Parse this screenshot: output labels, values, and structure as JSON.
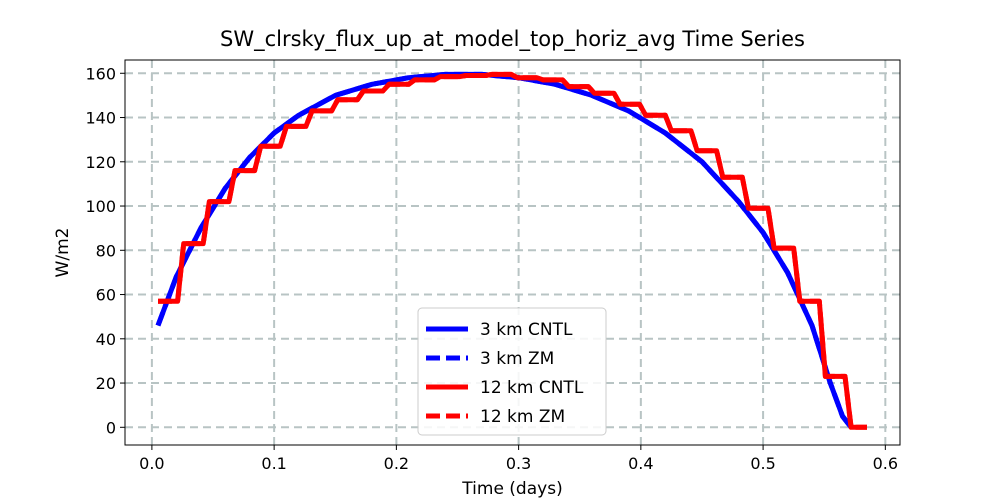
{
  "chart_data": {
    "type": "line",
    "title": "SW_clrsky_flux_up_at_model_top_horiz_avg Time Series",
    "xlabel": "Time (days)",
    "ylabel": "W/m2",
    "xlim": [
      -0.022,
      0.612
    ],
    "ylim": [
      -8,
      166
    ],
    "xticks": [
      0.0,
      0.1,
      0.2,
      0.3,
      0.4,
      0.5,
      0.6
    ],
    "xtick_labels": [
      "0.0",
      "0.1",
      "0.2",
      "0.3",
      "0.4",
      "0.5",
      "0.6"
    ],
    "yticks": [
      0,
      20,
      40,
      60,
      80,
      100,
      120,
      140,
      160
    ],
    "ytick_labels": [
      "0",
      "20",
      "40",
      "60",
      "80",
      "100",
      "120",
      "140",
      "160"
    ],
    "grid": true,
    "legend_position": "lower-center",
    "series": [
      {
        "name": "3 km CNTL",
        "color": "#0000ff",
        "linestyle": "solid",
        "x": [
          0.005,
          0.02,
          0.04,
          0.06,
          0.08,
          0.1,
          0.12,
          0.15,
          0.18,
          0.21,
          0.24,
          0.27,
          0.3,
          0.33,
          0.36,
          0.39,
          0.42,
          0.45,
          0.48,
          0.5,
          0.52,
          0.54,
          0.555,
          0.565,
          0.572
        ],
        "y": [
          46,
          68,
          90,
          108,
          122,
          133,
          141,
          150,
          155,
          158,
          159.5,
          159.5,
          158,
          155,
          150,
          143,
          133,
          120,
          102,
          88,
          70,
          46,
          20,
          5,
          0
        ]
      },
      {
        "name": "3 km ZM",
        "color": "#0000ff",
        "linestyle": "dashed",
        "x": [
          0.005,
          0.02,
          0.04,
          0.06,
          0.08,
          0.1,
          0.12,
          0.15,
          0.18,
          0.21,
          0.24,
          0.27,
          0.3,
          0.33,
          0.36,
          0.39,
          0.42,
          0.45,
          0.48,
          0.5,
          0.52,
          0.54,
          0.555,
          0.565,
          0.572
        ],
        "y": [
          46,
          68,
          90,
          108,
          122,
          133,
          141,
          150,
          155,
          158,
          159.5,
          159.5,
          158,
          155,
          150,
          143,
          133,
          120,
          102,
          88,
          70,
          46,
          20,
          5,
          0
        ]
      },
      {
        "name": "12 km CNTL",
        "color": "#ff0000",
        "linestyle": "solid",
        "x": [
          0.005,
          0.021,
          0.026,
          0.042,
          0.047,
          0.063,
          0.068,
          0.084,
          0.089,
          0.105,
          0.11,
          0.126,
          0.131,
          0.147,
          0.152,
          0.168,
          0.173,
          0.189,
          0.194,
          0.21,
          0.215,
          0.231,
          0.236,
          0.252,
          0.257,
          0.273,
          0.278,
          0.294,
          0.299,
          0.315,
          0.32,
          0.336,
          0.341,
          0.357,
          0.362,
          0.378,
          0.383,
          0.399,
          0.404,
          0.42,
          0.425,
          0.441,
          0.446,
          0.462,
          0.467,
          0.483,
          0.488,
          0.504,
          0.509,
          0.525,
          0.53,
          0.546,
          0.551,
          0.567,
          0.572,
          0.585
        ],
        "y": [
          57,
          57,
          83,
          83,
          102,
          102,
          116,
          116,
          127,
          127,
          136,
          136,
          143,
          143,
          148,
          148,
          152,
          152,
          155,
          155,
          157,
          157,
          158.5,
          158.5,
          159,
          159,
          159.5,
          159.5,
          158,
          158,
          157,
          157,
          154,
          154,
          151,
          151,
          146,
          146,
          141,
          141,
          134,
          134,
          125,
          125,
          113,
          113,
          99,
          99,
          81,
          81,
          57,
          57,
          23,
          23,
          0,
          0
        ]
      },
      {
        "name": "12 km ZM",
        "color": "#ff0000",
        "linestyle": "dashed",
        "x": [
          0.005,
          0.021,
          0.026,
          0.042,
          0.047,
          0.063,
          0.068,
          0.084,
          0.089,
          0.105,
          0.11,
          0.126,
          0.131,
          0.147,
          0.152,
          0.168,
          0.173,
          0.189,
          0.194,
          0.21,
          0.215,
          0.231,
          0.236,
          0.252,
          0.257,
          0.273,
          0.278,
          0.294,
          0.299,
          0.315,
          0.32,
          0.336,
          0.341,
          0.357,
          0.362,
          0.378,
          0.383,
          0.399,
          0.404,
          0.42,
          0.425,
          0.441,
          0.446,
          0.462,
          0.467,
          0.483,
          0.488,
          0.504,
          0.509,
          0.525,
          0.53,
          0.546,
          0.551,
          0.567,
          0.572,
          0.585
        ],
        "y": [
          57,
          57,
          83,
          83,
          102,
          102,
          116,
          116,
          127,
          127,
          136,
          136,
          143,
          143,
          148,
          148,
          152,
          152,
          155,
          155,
          157,
          157,
          158.5,
          158.5,
          159,
          159,
          159.5,
          159.5,
          158,
          158,
          157,
          157,
          154,
          154,
          151,
          151,
          146,
          146,
          141,
          141,
          134,
          134,
          125,
          125,
          113,
          113,
          99,
          99,
          81,
          81,
          57,
          57,
          23,
          23,
          0,
          0
        ]
      }
    ]
  }
}
